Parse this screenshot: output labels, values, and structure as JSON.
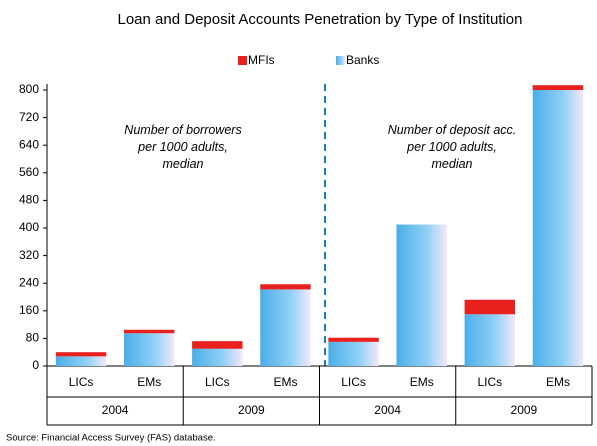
{
  "chart_data": {
    "type": "stacked_bar",
    "title": "Loan and Deposit Accounts Penetration by Type of Institution",
    "categories": [
      "LICs",
      "EMs",
      "LICs",
      "EMs",
      "LICs",
      "EMs",
      "LICs",
      "EMs"
    ],
    "groups": [
      "2004",
      "2009",
      "2004",
      "2009"
    ],
    "series": [
      {
        "name": "Banks",
        "color": "#5bb8ee",
        "values": [
          28,
          95,
          50,
          222,
          70,
          410,
          150,
          800
        ]
      },
      {
        "name": "MFIs",
        "color": "#e8201e",
        "values": [
          12,
          10,
          22,
          15,
          12,
          0,
          42,
          14
        ]
      }
    ],
    "legend_order": [
      "MFIs",
      "Banks"
    ],
    "ylim": [
      0,
      800
    ],
    "yticks": [
      0,
      80,
      160,
      240,
      320,
      400,
      480,
      560,
      640,
      720,
      800
    ],
    "annotations": [
      "Number of borrowers\nper 1000 adults,\nmedian",
      "Number of deposit acc.\nper 1000 adults,\nmedian"
    ],
    "source": "Source: Financial Access Survey (FAS) database."
  }
}
